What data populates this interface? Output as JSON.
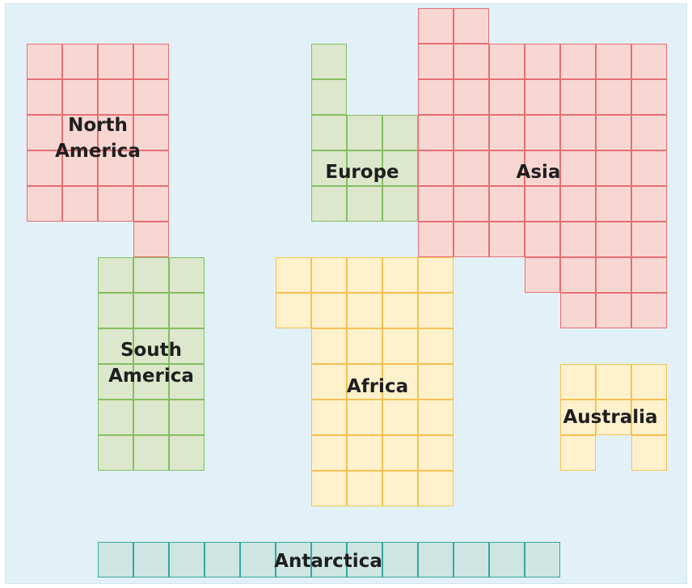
{
  "map": {
    "continents": [
      {
        "id": "north-america",
        "label": [
          "North",
          "America"
        ],
        "color": "red"
      },
      {
        "id": "south-america",
        "label": [
          "South",
          "America"
        ],
        "color": "green"
      },
      {
        "id": "europe",
        "label": [
          "Europe"
        ],
        "color": "green"
      },
      {
        "id": "asia",
        "label": [
          "Asia"
        ],
        "color": "red"
      },
      {
        "id": "africa",
        "label": [
          "Africa"
        ],
        "color": "yellow"
      },
      {
        "id": "australia",
        "label": [
          "Australia"
        ],
        "color": "yellow"
      },
      {
        "id": "antarctica",
        "label": [
          "Antarctica"
        ],
        "color": "teal"
      }
    ],
    "palette": {
      "red": {
        "fill": "#f8d7d3",
        "stroke": "#e66f72"
      },
      "green": {
        "fill": "#dce7cb",
        "stroke": "#86bd62"
      },
      "yellow": {
        "fill": "#fef1cc",
        "stroke": "#f5c152"
      },
      "teal": {
        "fill": "#cfe5e2",
        "stroke": "#32a89f"
      }
    },
    "background": "#e2f1f7"
  }
}
